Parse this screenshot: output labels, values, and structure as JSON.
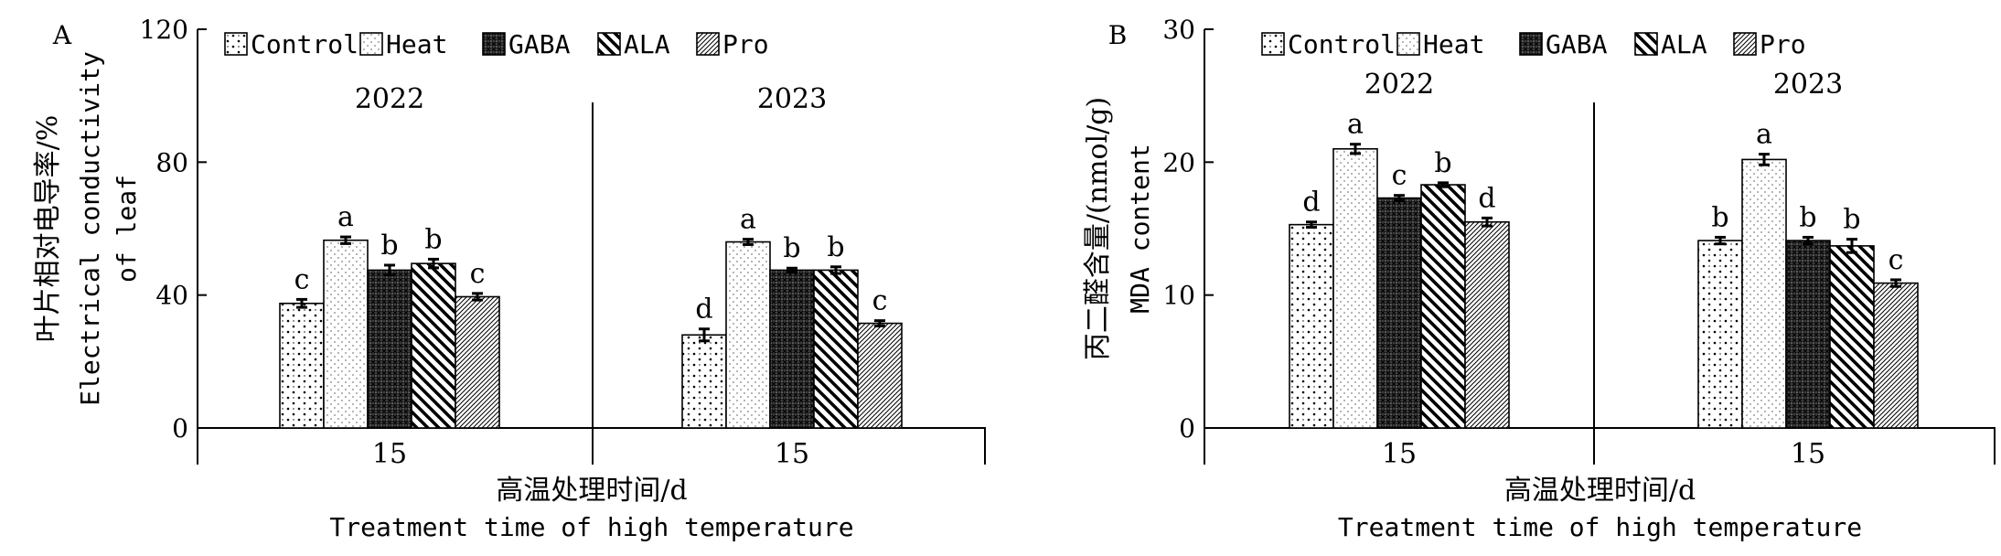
{
  "legend": [
    "Control",
    "Heat",
    "GABA",
    "ALA",
    "Pro"
  ],
  "chart_data": [
    {
      "type": "bar",
      "panel_label": "A",
      "ylabel_cn": "叶片相对电导率/%",
      "ylabel_en_1": "Electrical conductivity",
      "ylabel_en_2": "of leaf",
      "xlabel_cn": "高温处理时间/d",
      "xlabel_en": "Treatment time of high temperature",
      "ylim": [
        0,
        120
      ],
      "yticks": [
        0,
        40,
        80,
        120
      ],
      "groups": [
        {
          "year": "2022",
          "x_tick": "15",
          "values": [
            37.5,
            56.5,
            47.5,
            49.5,
            39.5
          ],
          "errors": [
            1.2,
            1.0,
            1.5,
            1.3,
            1.0
          ],
          "letters": [
            "c",
            "a",
            "b",
            "b",
            "c"
          ]
        },
        {
          "year": "2023",
          "x_tick": "15",
          "values": [
            28.0,
            56.0,
            47.5,
            47.5,
            31.5
          ],
          "errors": [
            1.8,
            0.8,
            0.6,
            1.0,
            0.8
          ],
          "letters": [
            "d",
            "a",
            "b",
            "b",
            "c"
          ]
        }
      ]
    },
    {
      "type": "bar",
      "panel_label": "B",
      "ylabel_cn": "丙二醛含量/(nmol/g)",
      "ylabel_en_1": "MDA content",
      "ylabel_en_2": "",
      "xlabel_cn": "高温处理时间/d",
      "xlabel_en": "Treatment time of high temperature",
      "ylim": [
        0,
        30
      ],
      "yticks": [
        0,
        10,
        20,
        30
      ],
      "groups": [
        {
          "year": "2022",
          "x_tick": "15",
          "values": [
            15.3,
            21.0,
            17.3,
            18.3,
            15.5
          ],
          "errors": [
            0.2,
            0.35,
            0.2,
            0.15,
            0.3
          ],
          "letters": [
            "d",
            "a",
            "c",
            "b",
            "d"
          ]
        },
        {
          "year": "2023",
          "x_tick": "15",
          "values": [
            14.1,
            20.2,
            14.1,
            13.7,
            10.9
          ],
          "errors": [
            0.25,
            0.4,
            0.25,
            0.5,
            0.25
          ],
          "letters": [
            "b",
            "a",
            "b",
            "b",
            "c"
          ]
        }
      ]
    }
  ]
}
